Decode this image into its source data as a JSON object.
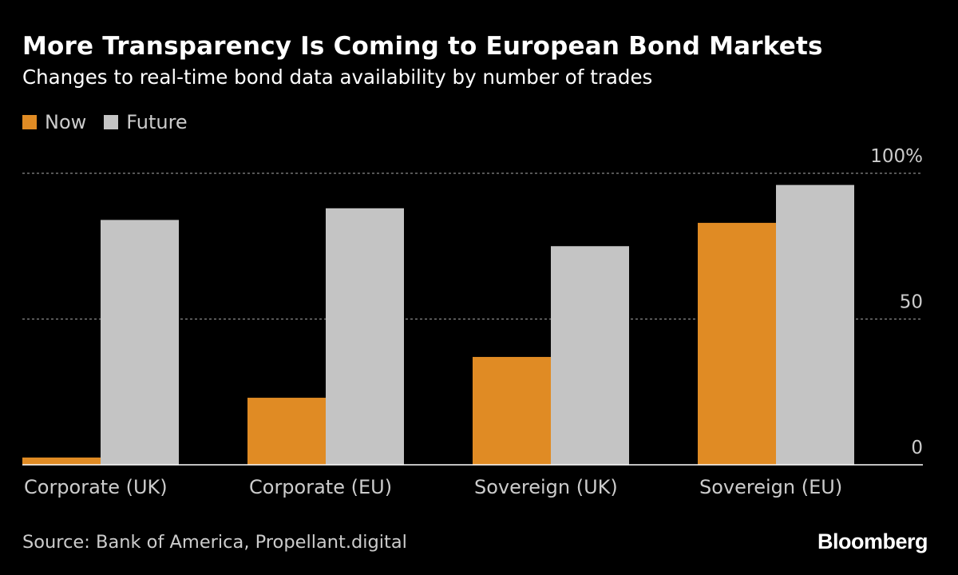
{
  "chart_data": {
    "type": "bar",
    "title": "More Transparency Is Coming to European Bond Markets",
    "subtitle": "Changes to real-time bond data availability by number of trades",
    "categories": [
      "Corporate (UK)",
      "Corporate (EU)",
      "Sovereign (UK)",
      "Sovereign (EU)"
    ],
    "series": [
      {
        "name": "Now",
        "color": "#e08b24",
        "values": [
          2.5,
          23,
          37,
          83
        ]
      },
      {
        "name": "Future",
        "color": "#c4c4c4",
        "values": [
          84,
          88,
          75,
          96
        ]
      }
    ],
    "yticks": [
      {
        "value": 0,
        "label": "0"
      },
      {
        "value": 50,
        "label": "50"
      },
      {
        "value": 100,
        "label": "100%"
      }
    ],
    "ylim": [
      0,
      100
    ],
    "xlabel": "",
    "ylabel": "",
    "grid": true,
    "legend_position": "top-left"
  },
  "source": "Source: Bank of America, Propellant.digital",
  "brand": "Bloomberg"
}
